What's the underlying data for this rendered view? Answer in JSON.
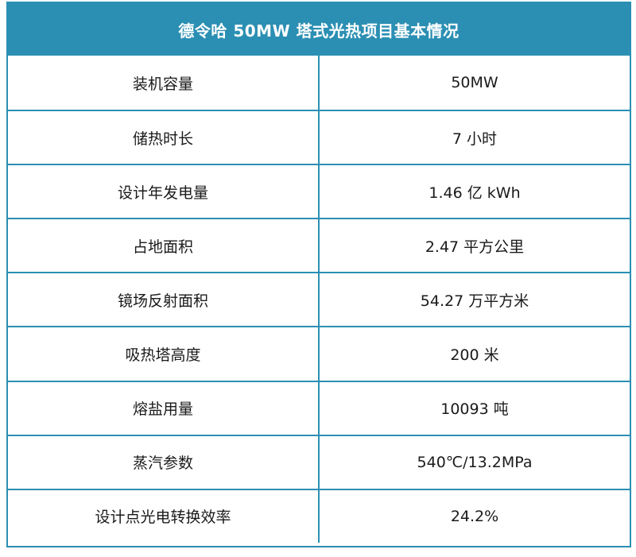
{
  "table": {
    "title": "德令哈 50MW 塔式光热项目基本情况",
    "rows": [
      {
        "label": "装机容量",
        "value": "50MW"
      },
      {
        "label": "储热时长",
        "value": "7 小时"
      },
      {
        "label": "设计年发电量",
        "value": "1.46 亿 kWh"
      },
      {
        "label": "占地面积",
        "value": "2.47 平方公里"
      },
      {
        "label": "镜场反射面积",
        "value": "54.27 万平方米"
      },
      {
        "label": "吸热塔高度",
        "value": "200 米"
      },
      {
        "label": "熔盐用量",
        "value": "10093 吨"
      },
      {
        "label": "蒸汽参数",
        "value": "540℃/13.2MPa"
      },
      {
        "label": "设计点光电转换效率",
        "value": "24.2%"
      }
    ]
  },
  "colors": {
    "accent": "#2b8fb3",
    "text": "#1a1a1a",
    "header_text": "#ffffff"
  }
}
